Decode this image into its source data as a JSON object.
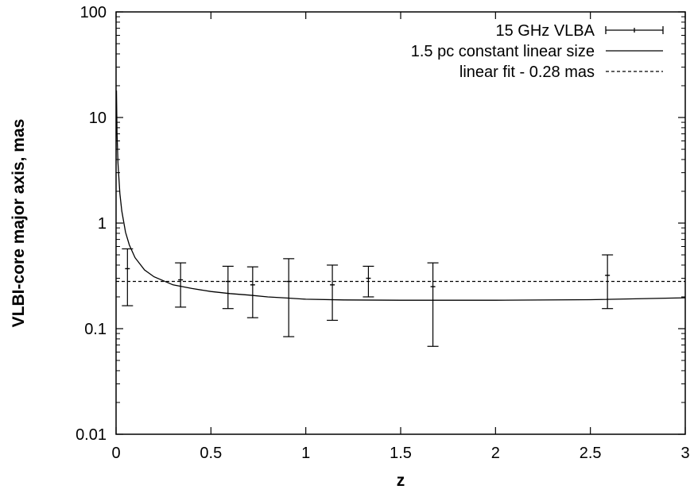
{
  "chart_data": {
    "type": "scatter",
    "xlabel": "z",
    "ylabel": "VLBI-core major axis, mas",
    "xlim": [
      0,
      3
    ],
    "ylim": [
      0.01,
      100
    ],
    "y_scale": "log",
    "grid": false,
    "legend_position": "top-right",
    "x_ticks": [
      {
        "value": 0,
        "label": "0"
      },
      {
        "value": 0.5,
        "label": "0.5"
      },
      {
        "value": 1,
        "label": "1"
      },
      {
        "value": 1.5,
        "label": "1.5"
      },
      {
        "value": 2,
        "label": "2"
      },
      {
        "value": 2.5,
        "label": "2.5"
      },
      {
        "value": 3,
        "label": "3"
      }
    ],
    "y_ticks": [
      {
        "value": 0.01,
        "label": "0.01"
      },
      {
        "value": 0.1,
        "label": "0.1"
      },
      {
        "value": 1,
        "label": "1"
      },
      {
        "value": 10,
        "label": "10"
      },
      {
        "value": 100,
        "label": "100"
      }
    ],
    "series": [
      {
        "name": "15 GHz VLBA",
        "style": "errorbars",
        "points": [
          {
            "x": 0.06,
            "y": 0.37,
            "ylow": 0.165,
            "yhigh": 0.57
          },
          {
            "x": 0.34,
            "y": 0.29,
            "ylow": 0.16,
            "yhigh": 0.42
          },
          {
            "x": 0.59,
            "y": 0.28,
            "ylow": 0.155,
            "yhigh": 0.39
          },
          {
            "x": 0.72,
            "y": 0.26,
            "ylow": 0.127,
            "yhigh": 0.385
          },
          {
            "x": 0.91,
            "y": 0.28,
            "ylow": 0.084,
            "yhigh": 0.46
          },
          {
            "x": 1.14,
            "y": 0.26,
            "ylow": 0.12,
            "yhigh": 0.4
          },
          {
            "x": 1.33,
            "y": 0.3,
            "ylow": 0.2,
            "yhigh": 0.39
          },
          {
            "x": 1.67,
            "y": 0.25,
            "ylow": 0.068,
            "yhigh": 0.42
          },
          {
            "x": 2.59,
            "y": 0.32,
            "ylow": 0.155,
            "yhigh": 0.5
          }
        ]
      },
      {
        "name": "1.5 pc constant linear size",
        "style": "solid-line",
        "x": [
          0.002,
          0.005,
          0.01,
          0.02,
          0.03,
          0.05,
          0.07,
          0.1,
          0.15,
          0.2,
          0.3,
          0.4,
          0.5,
          0.6,
          0.7,
          0.8,
          0.9,
          1.0,
          1.2,
          1.5,
          2.0,
          2.5,
          3.0
        ],
        "values": [
          18,
          7.2,
          3.7,
          1.9,
          1.3,
          0.82,
          0.62,
          0.47,
          0.36,
          0.31,
          0.26,
          0.24,
          0.225,
          0.215,
          0.208,
          0.2,
          0.195,
          0.19,
          0.187,
          0.186,
          0.186,
          0.188,
          0.196
        ]
      },
      {
        "name": "linear fit - 0.28 mas",
        "style": "dashed-line",
        "constant": 0.28
      }
    ]
  }
}
